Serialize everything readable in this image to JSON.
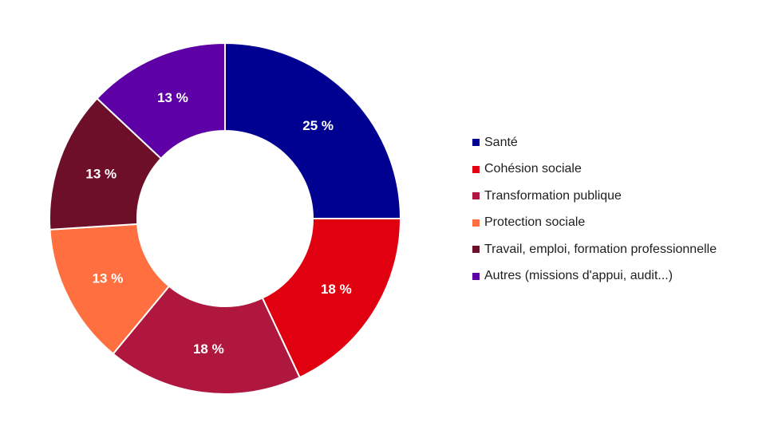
{
  "chart_data": {
    "type": "pie",
    "donut": true,
    "categories": [
      "Santé",
      "Cohésion sociale",
      "Transformation publique",
      "Protection sociale",
      "Travail, emploi, formation professionnelle",
      "Autres (missions d'appui, audit...)"
    ],
    "values": [
      25,
      18,
      18,
      13,
      13,
      13
    ],
    "data_labels": [
      "25 %",
      "18 %",
      "18 %",
      "13 %",
      "13 %",
      "13 %"
    ],
    "colors": [
      "#000091",
      "#e1000f",
      "#b0173f",
      "#ff6f3f",
      "#6e0f2a",
      "#5d00a6"
    ],
    "legend_position": "right"
  }
}
